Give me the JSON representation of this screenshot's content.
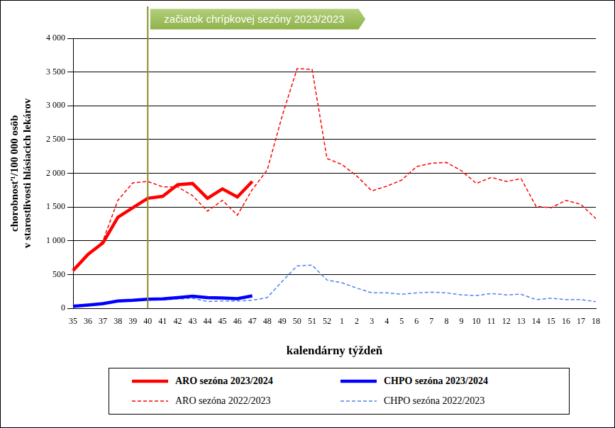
{
  "chart_data": {
    "type": "line",
    "xlabel": "kalendárny týždeň",
    "ylabel": [
      "chorobnosť¹/100 000 osôb",
      "v starostlivosti hlásiacich lekárov"
    ],
    "categories": [
      "35",
      "36",
      "37",
      "38",
      "39",
      "40",
      "41",
      "42",
      "43",
      "44",
      "45",
      "46",
      "47",
      "48",
      "49",
      "50",
      "51",
      "52",
      "1",
      "2",
      "3",
      "4",
      "5",
      "6",
      "7",
      "8",
      "9",
      "10",
      "11",
      "12",
      "13",
      "14",
      "15",
      "16",
      "17",
      "18"
    ],
    "series": [
      {
        "name": "ARO sezóna 2023/2024",
        "color": "#ff0000",
        "line_style": "solid",
        "values": [
          560,
          800,
          970,
          1350,
          1490,
          1630,
          1660,
          1830,
          1850,
          1630,
          1770,
          1650,
          1880,
          null,
          null,
          null,
          null,
          null,
          null,
          null,
          null,
          null,
          null,
          null,
          null,
          null,
          null,
          null,
          null,
          null,
          null,
          null,
          null,
          null,
          null,
          null
        ]
      },
      {
        "name": "CHPO sezóna 2023/2024",
        "color": "#0000ff",
        "line_style": "solid",
        "values": [
          30,
          50,
          70,
          110,
          120,
          135,
          140,
          160,
          180,
          160,
          155,
          145,
          185,
          null,
          null,
          null,
          null,
          null,
          null,
          null,
          null,
          null,
          null,
          null,
          null,
          null,
          null,
          null,
          null,
          null,
          null,
          null,
          null,
          null,
          null,
          null
        ]
      },
      {
        "name": "ARO sezóna 2022/2023",
        "color": "#ff0000",
        "line_style": "dashed",
        "values": [
          540,
          780,
          1000,
          1600,
          1860,
          1880,
          1800,
          1800,
          1670,
          1440,
          1600,
          1380,
          1760,
          2050,
          2850,
          3550,
          3540,
          2220,
          2130,
          1960,
          1740,
          1810,
          1900,
          2100,
          2150,
          2160,
          2040,
          1850,
          1940,
          1880,
          1920,
          1510,
          1490,
          1600,
          1540,
          1330
        ]
      },
      {
        "name": "CHPO sezóna 2022/2023",
        "color": "#4f81f0",
        "line_style": "dashed",
        "values": [
          50,
          60,
          80,
          100,
          110,
          130,
          125,
          140,
          150,
          100,
          110,
          110,
          120,
          160,
          400,
          630,
          640,
          420,
          380,
          300,
          230,
          230,
          210,
          230,
          240,
          230,
          200,
          190,
          220,
          200,
          210,
          130,
          150,
          130,
          130,
          100
        ]
      }
    ],
    "ylim": [
      0,
      4000
    ],
    "yticks": [
      0,
      500,
      {
        "value": 1000,
        "label": "1 000"
      },
      {
        "value": 1500,
        "label": "1 500"
      },
      {
        "value": 2000,
        "label": "2 000"
      },
      {
        "value": 2500,
        "label": "2 500"
      },
      {
        "value": 3000,
        "label": "3 000"
      },
      {
        "value": 3500,
        "label": "3 500"
      },
      {
        "value": 4000,
        "label": "4 000"
      }
    ],
    "grid": true,
    "legend": "bottom",
    "annotations": [
      {
        "x": "40",
        "text": "začiatok chrípkovej sezóny 2023/2023"
      }
    ]
  }
}
